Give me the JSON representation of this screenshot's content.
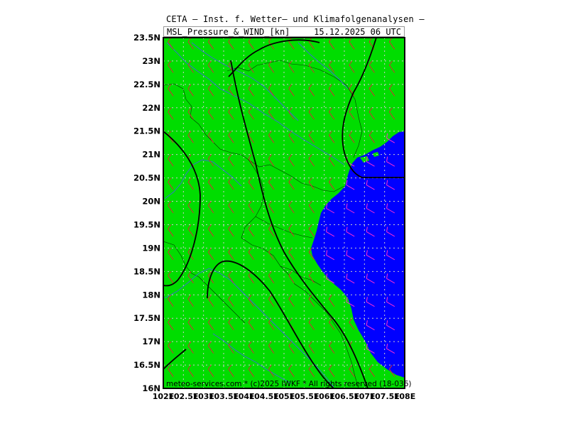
{
  "title": "CETA — Inst. f. Wetter— und Klimafolgenanalysen —",
  "subtitle_left": "MSL_Pressure_&_WIND_[kn]",
  "subtitle_right": "15.12.2025 06 UTC",
  "credit": "meteo-services.com * (c)2025 IWKF * All rights reserved (18-036)",
  "lat_labels": [
    "23.5N",
    "23N",
    "22.5N",
    "22N",
    "21.5N",
    "21N",
    "20.5N",
    "20N",
    "19.5N",
    "19N",
    "18.5N",
    "18N",
    "17.5N",
    "17N",
    "16.5N",
    "16N"
  ],
  "lon_labels": [
    "102E",
    "102.5E",
    "103E",
    "103.5E",
    "104E",
    "104.5E",
    "105E",
    "105.5E",
    "106E",
    "106.5E",
    "107E",
    "107.5E",
    "108E"
  ],
  "colors": {
    "land": "#00dd00",
    "sea": "#0000ff",
    "isobar": "#000000",
    "grid": "#cccccc",
    "rivers": "#3a6bd6",
    "barb_land": "#d03030",
    "barb_sea": "#ff2bd0"
  }
}
